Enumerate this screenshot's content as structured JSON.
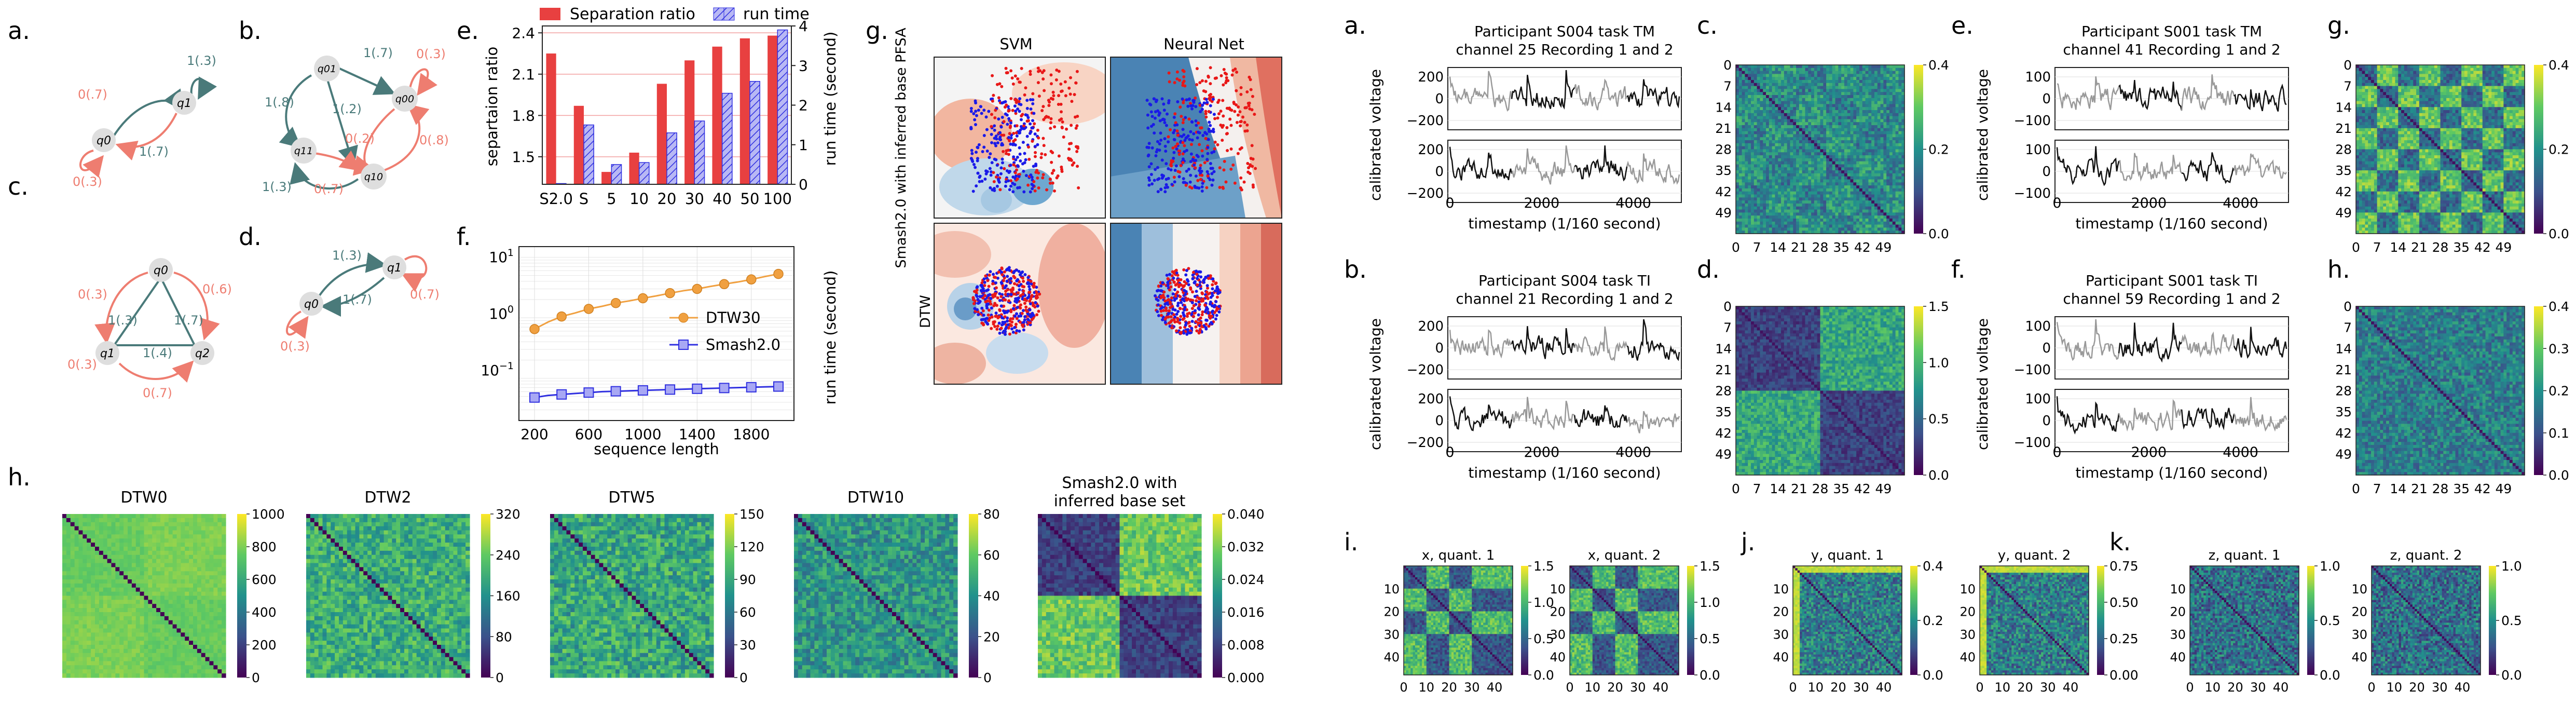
{
  "colors": {
    "red": "#e84040",
    "blue": "#3030e0",
    "orange": "#f0a040",
    "teal": "#4a7a7a",
    "salmon": "#ee7d70",
    "node": "#dedede",
    "axis": "#222222",
    "grid": "#cccccc"
  },
  "panel_letters": {
    "a": "a.",
    "b": "b.",
    "c": "c.",
    "d": "d.",
    "e": "e.",
    "f": "f.",
    "g": "g.",
    "h": "h.",
    "ra": "a.",
    "rb": "b.",
    "rc": "c.",
    "rd": "d.",
    "re": "e.",
    "rf": "f.",
    "rg": "g.",
    "rh": "h.",
    "ri": "i.",
    "rj": "j.",
    "rk": "k."
  },
  "pfsa": {
    "a": {
      "nodes": [
        "q0",
        "q1"
      ],
      "edges": [
        "1(.3)",
        "0(.7)",
        "1(.7)",
        "0(.3)"
      ]
    },
    "b": {
      "nodes": [
        "q01",
        "q00",
        "q11",
        "q10"
      ],
      "edges": [
        "1(.7)",
        "0(.3)",
        "1(.8)",
        "1(.2)",
        "0(.2)",
        "0(.8)",
        "1(.3)",
        "0(.7)"
      ]
    },
    "c": {
      "nodes": [
        "q0",
        "q1",
        "q2"
      ],
      "edges": [
        "0(.3)",
        "0(.6)",
        "1(.3)",
        "1(.7)",
        "1(.4)",
        "0(.3)",
        "0(.7)"
      ]
    },
    "d": {
      "nodes": [
        "q0",
        "q1"
      ],
      "edges": [
        "1(.3)",
        "1(.7)",
        "0(.3)",
        "0(.7)"
      ]
    }
  },
  "chart_data": [
    {
      "id": "e",
      "type": "bar",
      "categories": [
        "S2.0",
        "S",
        "5",
        "10",
        "20",
        "30",
        "40",
        "50",
        "100"
      ],
      "series": [
        {
          "name": "Separation ratio",
          "values": [
            2.25,
            1.87,
            1.39,
            1.53,
            2.03,
            2.2,
            2.3,
            2.36,
            2.38
          ],
          "axis": "left"
        },
        {
          "name": "run time",
          "values": [
            0.02,
            1.5,
            0.5,
            0.55,
            1.3,
            1.6,
            2.3,
            2.6,
            3.9
          ],
          "axis": "right"
        }
      ],
      "ylabel": "separtaion ratio",
      "ylabel_right": "run time (second)",
      "ylim": [
        1.3,
        2.45
      ],
      "ylim_right": [
        0,
        4
      ],
      "yticks": [
        "1.5",
        "1.8",
        "2.1",
        "2.4"
      ],
      "yticks_right": [
        "0",
        "1",
        "2",
        "3",
        "4"
      ]
    },
    {
      "id": "f",
      "type": "line",
      "y_scale": "log",
      "x": [
        200,
        300,
        400,
        500,
        600,
        700,
        800,
        900,
        1000,
        1100,
        1200,
        1300,
        1400,
        1500,
        1600,
        1700,
        1800,
        1900,
        2000
      ],
      "series": [
        {
          "name": "DTW30",
          "values": [
            0.65,
            0.85,
            1.05,
            1.2,
            1.4,
            1.55,
            1.75,
            1.9,
            2.1,
            2.3,
            2.55,
            2.8,
            3.0,
            3.3,
            3.6,
            3.9,
            4.3,
            4.8,
            5.3
          ]
        },
        {
          "name": "Smash2.0",
          "values": [
            0.048,
            0.052,
            0.054,
            0.056,
            0.058,
            0.06,
            0.061,
            0.062,
            0.063,
            0.064,
            0.065,
            0.066,
            0.067,
            0.068,
            0.069,
            0.07,
            0.071,
            0.072,
            0.073
          ]
        }
      ],
      "xlabel": "sequence length",
      "ylabel": "run time (second)",
      "xticks": [
        "200",
        "600",
        "1000",
        "1400",
        "1800"
      ],
      "ylim": [
        0.02,
        15
      ]
    },
    {
      "id": "g",
      "type": "scatter",
      "columns": [
        "SVM",
        "Neural Net"
      ],
      "rows": [
        "Smash2.0 with inferred base PFSA",
        "DTW"
      ]
    },
    {
      "id": "h",
      "type": "heatmap",
      "panels": [
        {
          "title": "DTW0",
          "ticks": [
            "0",
            "200",
            "400",
            "600",
            "800",
            "1000"
          ]
        },
        {
          "title": "DTW2",
          "ticks": [
            "0",
            "80",
            "160",
            "240",
            "320"
          ]
        },
        {
          "title": "DTW5",
          "ticks": [
            "0",
            "30",
            "60",
            "90",
            "120",
            "150"
          ]
        },
        {
          "title": "DTW10",
          "ticks": [
            "0",
            "20",
            "40",
            "60",
            "80"
          ]
        },
        {
          "title": "Smash2.0 with inferred base set",
          "ticks": [
            "0.000",
            "0.008",
            "0.016",
            "0.024",
            "0.032",
            "0.040"
          ]
        }
      ]
    },
    {
      "id": "eeg",
      "type": "line",
      "panels": [
        {
          "title": "Participant S004 task TM channel 25 Recording 1 and 2",
          "yticks": [
            "200",
            "0",
            "-200"
          ]
        },
        {
          "title": "Participant S004 task TI channel 21 Recording 1 and 2",
          "yticks": [
            "200",
            "0",
            "-200"
          ]
        },
        {
          "title": "Participant S001 task TM channel 41 Recording 1 and 2",
          "yticks": [
            "100",
            "0",
            "-100"
          ]
        },
        {
          "title": "Participant S001 task TI channel 59 Recording 1 and 2",
          "yticks": [
            "100",
            "0",
            "-100"
          ]
        }
      ],
      "xlabel": "timestamp (1/160 second)",
      "ylabel": "calibrated voltage",
      "xticks": [
        "0",
        "2000",
        "4000"
      ]
    },
    {
      "id": "eeg_heatmaps",
      "type": "heatmap",
      "ticks": [
        "0",
        "7",
        "14",
        "21",
        "28",
        "35",
        "42",
        "49"
      ],
      "panels": [
        {
          "letter": "c",
          "cbar": [
            "0.0",
            "0.2",
            "0.4"
          ]
        },
        {
          "letter": "d",
          "cbar": [
            "0.0",
            "0.5",
            "1.0",
            "1.5"
          ]
        },
        {
          "letter": "g",
          "cbar": [
            "0.0",
            "0.2",
            "0.4"
          ]
        },
        {
          "letter": "h",
          "cbar": [
            "0.0",
            "0.1",
            "0.2",
            "0.3",
            "0.4"
          ]
        }
      ]
    },
    {
      "id": "quant",
      "type": "heatmap",
      "xticks": [
        "0",
        "10",
        "20",
        "30",
        "40"
      ],
      "yticks": [
        "10",
        "20",
        "30",
        "40"
      ],
      "panels": [
        {
          "title": "x, quant. 1",
          "cbar": [
            "0.0",
            "0.5",
            "1.0",
            "1.5"
          ]
        },
        {
          "title": "x, quant. 2",
          "cbar": [
            "0.0",
            "0.5",
            "1.0",
            "1.5"
          ]
        },
        {
          "title": "y, quant. 1",
          "cbar": [
            "0.0",
            "0.2",
            "0.4"
          ]
        },
        {
          "title": "y, quant. 2",
          "cbar": [
            "0.00",
            "0.25",
            "0.50",
            "0.75"
          ]
        },
        {
          "title": "z, quant. 1",
          "cbar": [
            "0.0",
            "0.5",
            "1.0"
          ]
        },
        {
          "title": "z, quant. 2",
          "cbar": [
            "0.0",
            "0.5",
            "1.0"
          ]
        }
      ]
    }
  ]
}
